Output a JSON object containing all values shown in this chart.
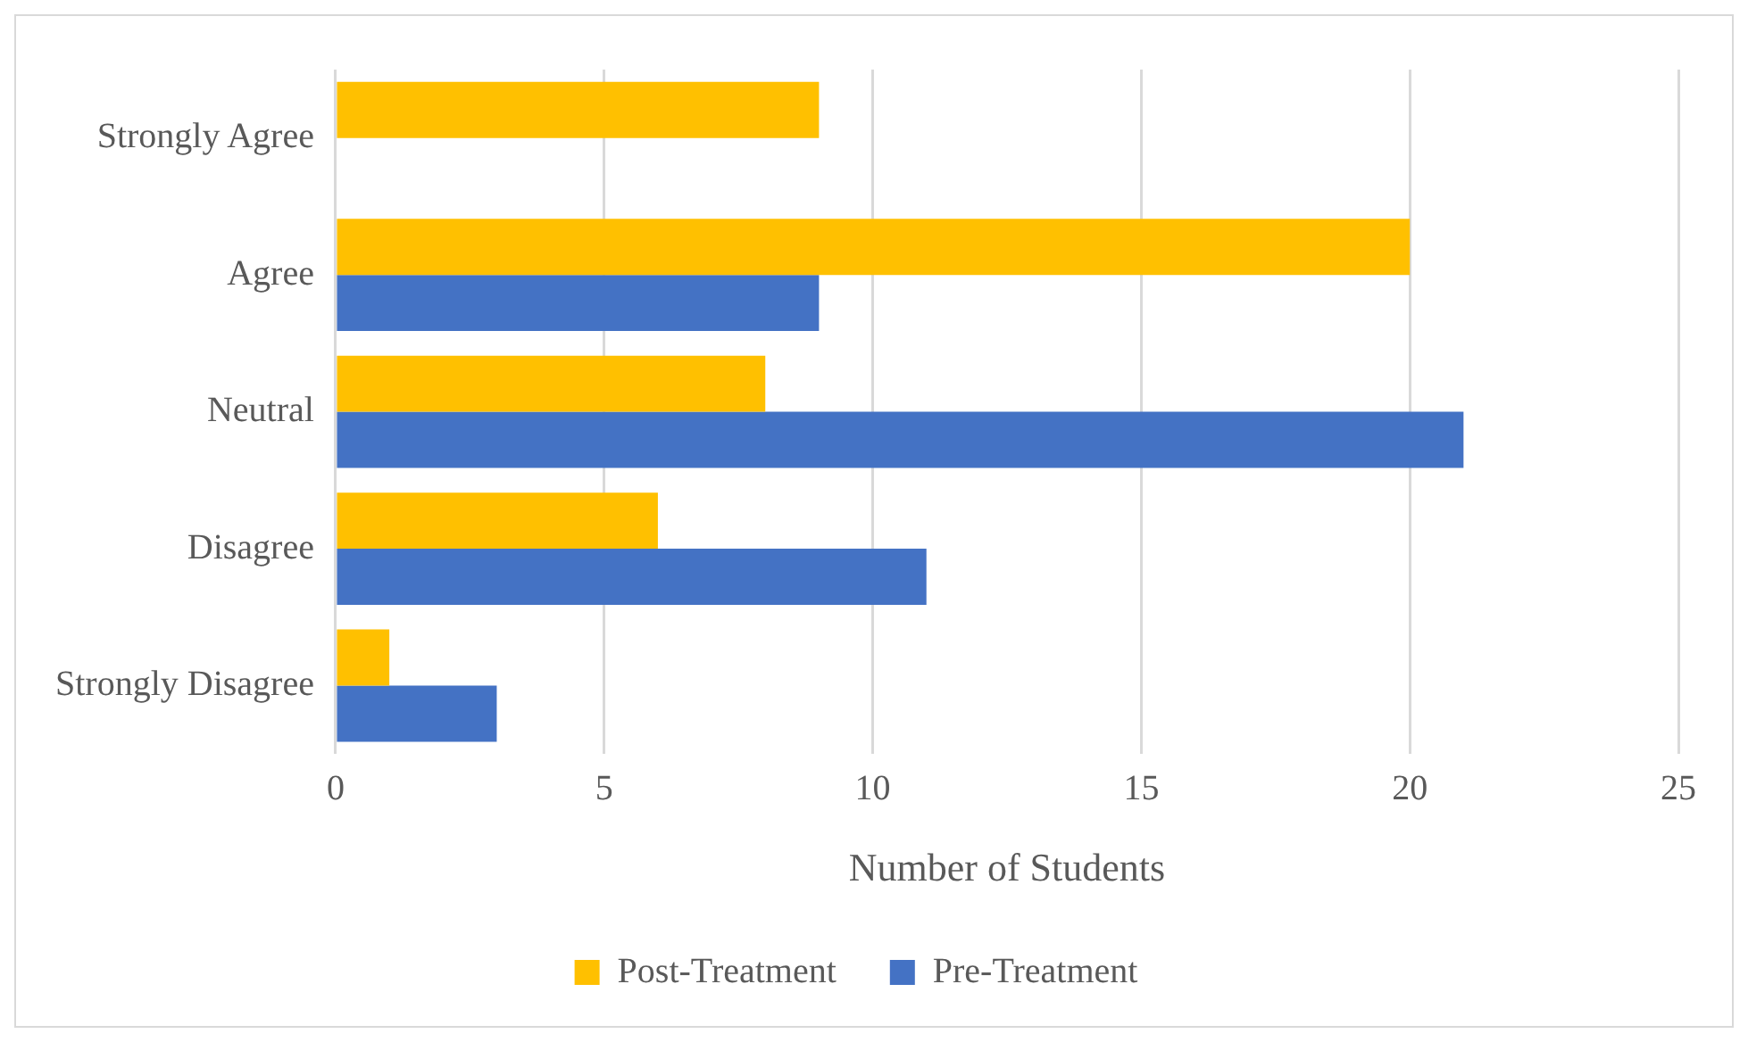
{
  "chart_data": {
    "type": "bar",
    "orientation": "horizontal",
    "categories": [
      "Strongly Agree",
      "Agree",
      "Neutral",
      "Disagree",
      "Strongly Disagree"
    ],
    "series": [
      {
        "name": "Post-Treatment",
        "color": "#ffc000",
        "values": [
          9,
          20,
          8,
          6,
          1
        ]
      },
      {
        "name": "Pre-Treatment",
        "color": "#4472c4",
        "values": [
          0,
          9,
          21,
          11,
          3
        ]
      }
    ],
    "xlabel": "Number of Students",
    "xlim": [
      0,
      25
    ],
    "xticks": [
      0,
      5,
      10,
      15,
      20,
      25
    ],
    "grid": "x",
    "legend": "bottom"
  }
}
